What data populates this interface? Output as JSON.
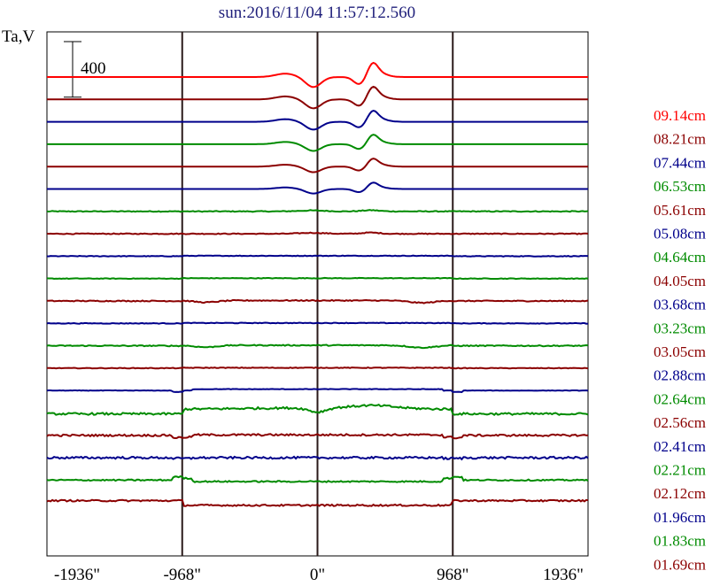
{
  "chart_data": {
    "type": "line",
    "title": "sun:2016/11/04 11:57:12.560",
    "title_color": "#1e1e7a",
    "ylabel": "Ta,V",
    "x_ticks": [
      "-1936\"",
      "-968\"",
      "0\"",
      "968\"",
      "1936\""
    ],
    "xlim": [
      -1936,
      1936
    ],
    "vertical_lines_at": [
      -968,
      0,
      968
    ],
    "scale_bar_label": "400",
    "scale_bar_value": 400,
    "grid": false,
    "legend_placement": "right",
    "series": [
      {
        "name": "09.14cm",
        "color": "#ff0000",
        "shape": "active"
      },
      {
        "name": "08.21cm",
        "color": "#8b0000",
        "shape": "active"
      },
      {
        "name": "07.44cm",
        "color": "#00008b",
        "shape": "active"
      },
      {
        "name": "06.53cm",
        "color": "#008b00",
        "shape": "active"
      },
      {
        "name": "05.61cm",
        "color": "#8b0000",
        "shape": "active"
      },
      {
        "name": "05.08cm",
        "color": "#00008b",
        "shape": "active"
      },
      {
        "name": "04.64cm",
        "color": "#008b00",
        "shape": "mild"
      },
      {
        "name": "04.05cm",
        "color": "#8b0000",
        "shape": "mild"
      },
      {
        "name": "03.68cm",
        "color": "#00008b",
        "shape": "flat"
      },
      {
        "name": "03.23cm",
        "color": "#008b00",
        "shape": "flat"
      },
      {
        "name": "03.05cm",
        "color": "#8b0000",
        "shape": "dip"
      },
      {
        "name": "02.88cm",
        "color": "#00008b",
        "shape": "flat"
      },
      {
        "name": "02.64cm",
        "color": "#008b00",
        "shape": "dip"
      },
      {
        "name": "02.56cm",
        "color": "#8b0000",
        "shape": "flat"
      },
      {
        "name": "02.41cm",
        "color": "#00008b",
        "shape": "bump"
      },
      {
        "name": "02.21cm",
        "color": "#008b00",
        "shape": "disk"
      },
      {
        "name": "02.12cm",
        "color": "#8b0000",
        "shape": "limb"
      },
      {
        "name": "01.96cm",
        "color": "#00008b",
        "shape": "noisy"
      },
      {
        "name": "01.83cm",
        "color": "#008b00",
        "shape": "edge"
      },
      {
        "name": "01.69cm",
        "color": "#8b0000",
        "shape": "low"
      }
    ]
  }
}
